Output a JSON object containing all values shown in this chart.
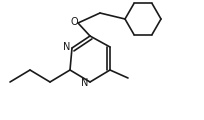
{
  "background": "#ffffff",
  "bond_color": "#1a1a1a",
  "bond_lw": 1.2,
  "figsize": [
    2.04,
    1.2
  ],
  "dpi": 100,
  "xlim": [
    0,
    204
  ],
  "ylim": [
    0,
    120
  ]
}
